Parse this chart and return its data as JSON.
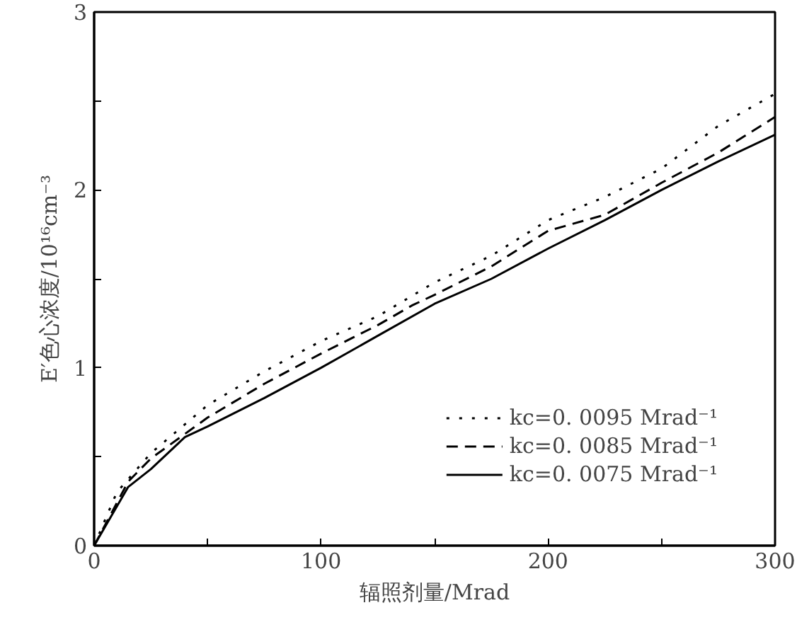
{
  "chart_data": {
    "type": "line",
    "xlabel": "辐照剂量/Mrad",
    "ylabel": "E′色心浓度/10¹⁶cm⁻³",
    "xlim": [
      0,
      300
    ],
    "ylim": [
      0,
      3
    ],
    "xticks": [
      0,
      {
        "value": 50,
        "label": null
      },
      100,
      {
        "value": 150,
        "label": null
      },
      200,
      {
        "value": 250,
        "label": null
      },
      300
    ],
    "yticks": [
      0,
      {
        "value": 0.5,
        "label": null
      },
      1,
      {
        "value": 1.5,
        "label": null
      },
      2,
      {
        "value": 2.5,
        "label": null
      },
      3
    ],
    "grid": false,
    "legend": "bottom right",
    "series": [
      {
        "name": "kc=0. 0095 Mrad⁻¹",
        "color": "#000000",
        "line_style": "dotted",
        "x": [
          0,
          10,
          25,
          50,
          75,
          100,
          125,
          150,
          175,
          200,
          225,
          250,
          275,
          300
        ],
        "values": [
          0,
          0.3,
          0.52,
          0.79,
          0.98,
          1.15,
          1.29,
          1.48,
          1.63,
          1.83,
          1.96,
          2.12,
          2.36,
          2.54
        ]
      },
      {
        "name": "kc=0. 0085 Mrad⁻¹",
        "color": "#000000",
        "line_style": "dashed",
        "x": [
          0,
          15,
          25,
          50,
          75,
          100,
          125,
          140,
          150,
          175,
          200,
          225,
          250,
          275,
          300
        ],
        "values": [
          0,
          0.36,
          0.49,
          0.72,
          0.91,
          1.08,
          1.24,
          1.35,
          1.41,
          1.57,
          1.77,
          1.86,
          2.04,
          2.21,
          2.41
        ]
      },
      {
        "name": "kc=0. 0075 Mrad⁻¹",
        "color": "#000000",
        "line_style": "solid",
        "x": [
          0,
          15,
          25,
          40,
          50,
          75,
          100,
          125,
          150,
          175,
          200,
          225,
          250,
          275,
          300
        ],
        "values": [
          0,
          0.33,
          0.43,
          0.61,
          0.67,
          0.83,
          1.0,
          1.18,
          1.36,
          1.5,
          1.67,
          1.83,
          2.0,
          2.16,
          2.31
        ]
      }
    ]
  }
}
